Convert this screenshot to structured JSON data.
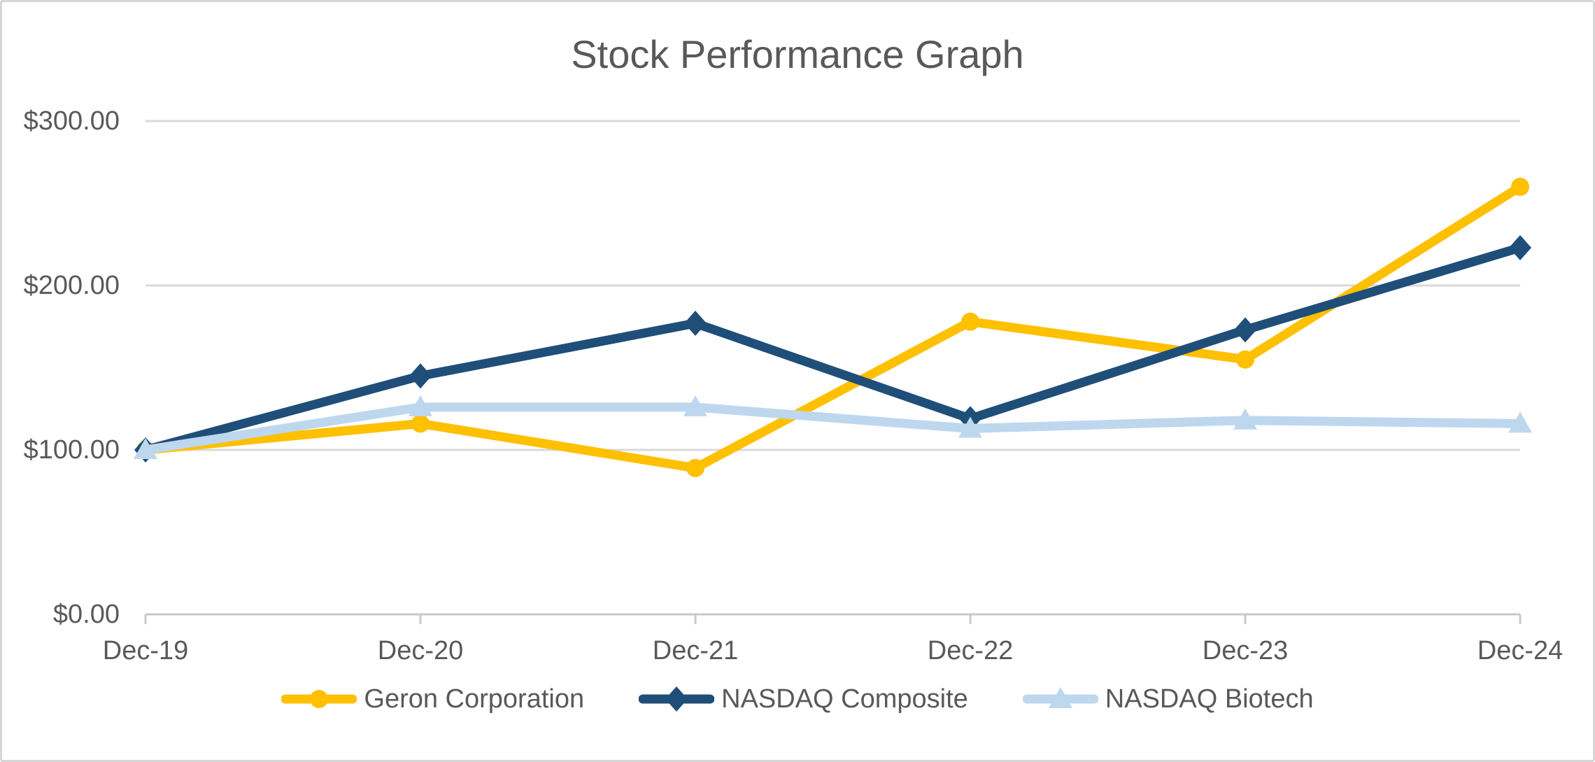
{
  "window": {
    "background_color": "#ffffff",
    "border_color": "#d6d6d6"
  },
  "chart_data": {
    "type": "line",
    "title": "Stock Performance Graph",
    "categories": [
      "Dec-19",
      "Dec-20",
      "Dec-21",
      "Dec-22",
      "Dec-23",
      "Dec-24"
    ],
    "series": [
      {
        "name": "Geron Corporation",
        "color": "#FFC000",
        "marker": "circle",
        "values": [
          100,
          116,
          89,
          178,
          155,
          260
        ]
      },
      {
        "name": "NASDAQ Composite",
        "color": "#1F4E79",
        "marker": "diamond",
        "values": [
          100,
          145,
          177,
          119,
          173,
          223
        ]
      },
      {
        "name": "NASDAQ Biotech",
        "color": "#BDD7EE",
        "marker": "triangle",
        "values": [
          100,
          126,
          126,
          113,
          118,
          116
        ]
      }
    ],
    "y_ticks": [
      "$300.00",
      "$200.00",
      "$100.00",
      "$0.00"
    ],
    "y_tick_values": [
      300,
      200,
      100,
      0
    ],
    "ylim": [
      0,
      300
    ],
    "xlabel": "",
    "ylabel": "",
    "grid": true,
    "legend_position": "bottom",
    "text_color": "#595959",
    "gridline_color": "#D9D9D9",
    "axis_color": "#C9C9C9"
  }
}
